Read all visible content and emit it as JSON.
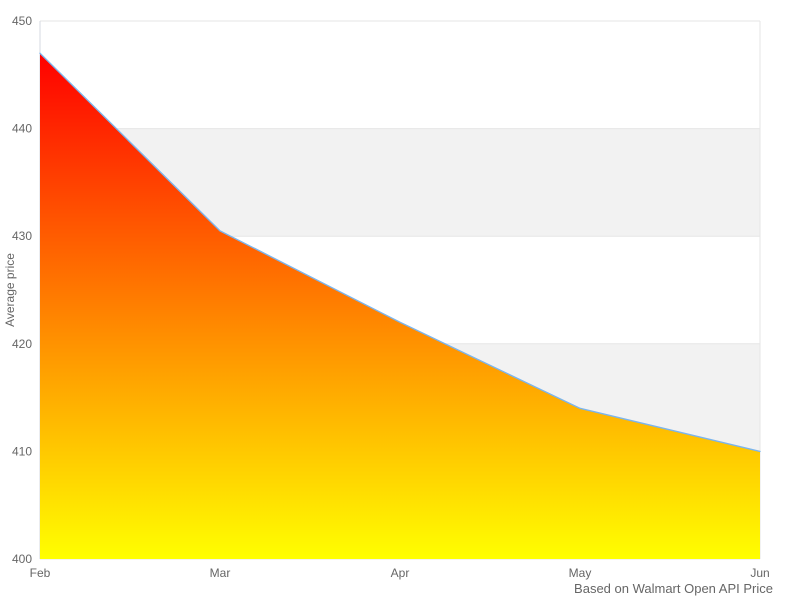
{
  "chart_data": {
    "type": "area",
    "title": "",
    "xlabel": "",
    "ylabel": "Average price",
    "categories": [
      "Feb",
      "Mar",
      "Apr",
      "May",
      "Jun"
    ],
    "values": [
      447,
      430.5,
      422,
      414,
      410
    ],
    "series": [
      {
        "name": "Average price",
        "values": [
          447,
          430.5,
          422,
          414,
          410
        ]
      }
    ],
    "ylim": [
      400,
      450
    ],
    "y_ticks": [
      400,
      410,
      420,
      430,
      440,
      450
    ],
    "y_tick_step": 10,
    "grid": true,
    "alternate_bands": true,
    "legend": "none",
    "caption": "Based on Walmart Open API Price",
    "colors": {
      "line": "#7cb5ec",
      "area_gradient_top": "#ff0000",
      "area_gradient_bottom": "#ffff00",
      "band": "#f2f2f2",
      "gridline": "#e6e6e6",
      "axis_line": "#d6dae0",
      "tick_label": "#666666",
      "axis_title": "#666666",
      "caption_color": "#666666"
    }
  }
}
